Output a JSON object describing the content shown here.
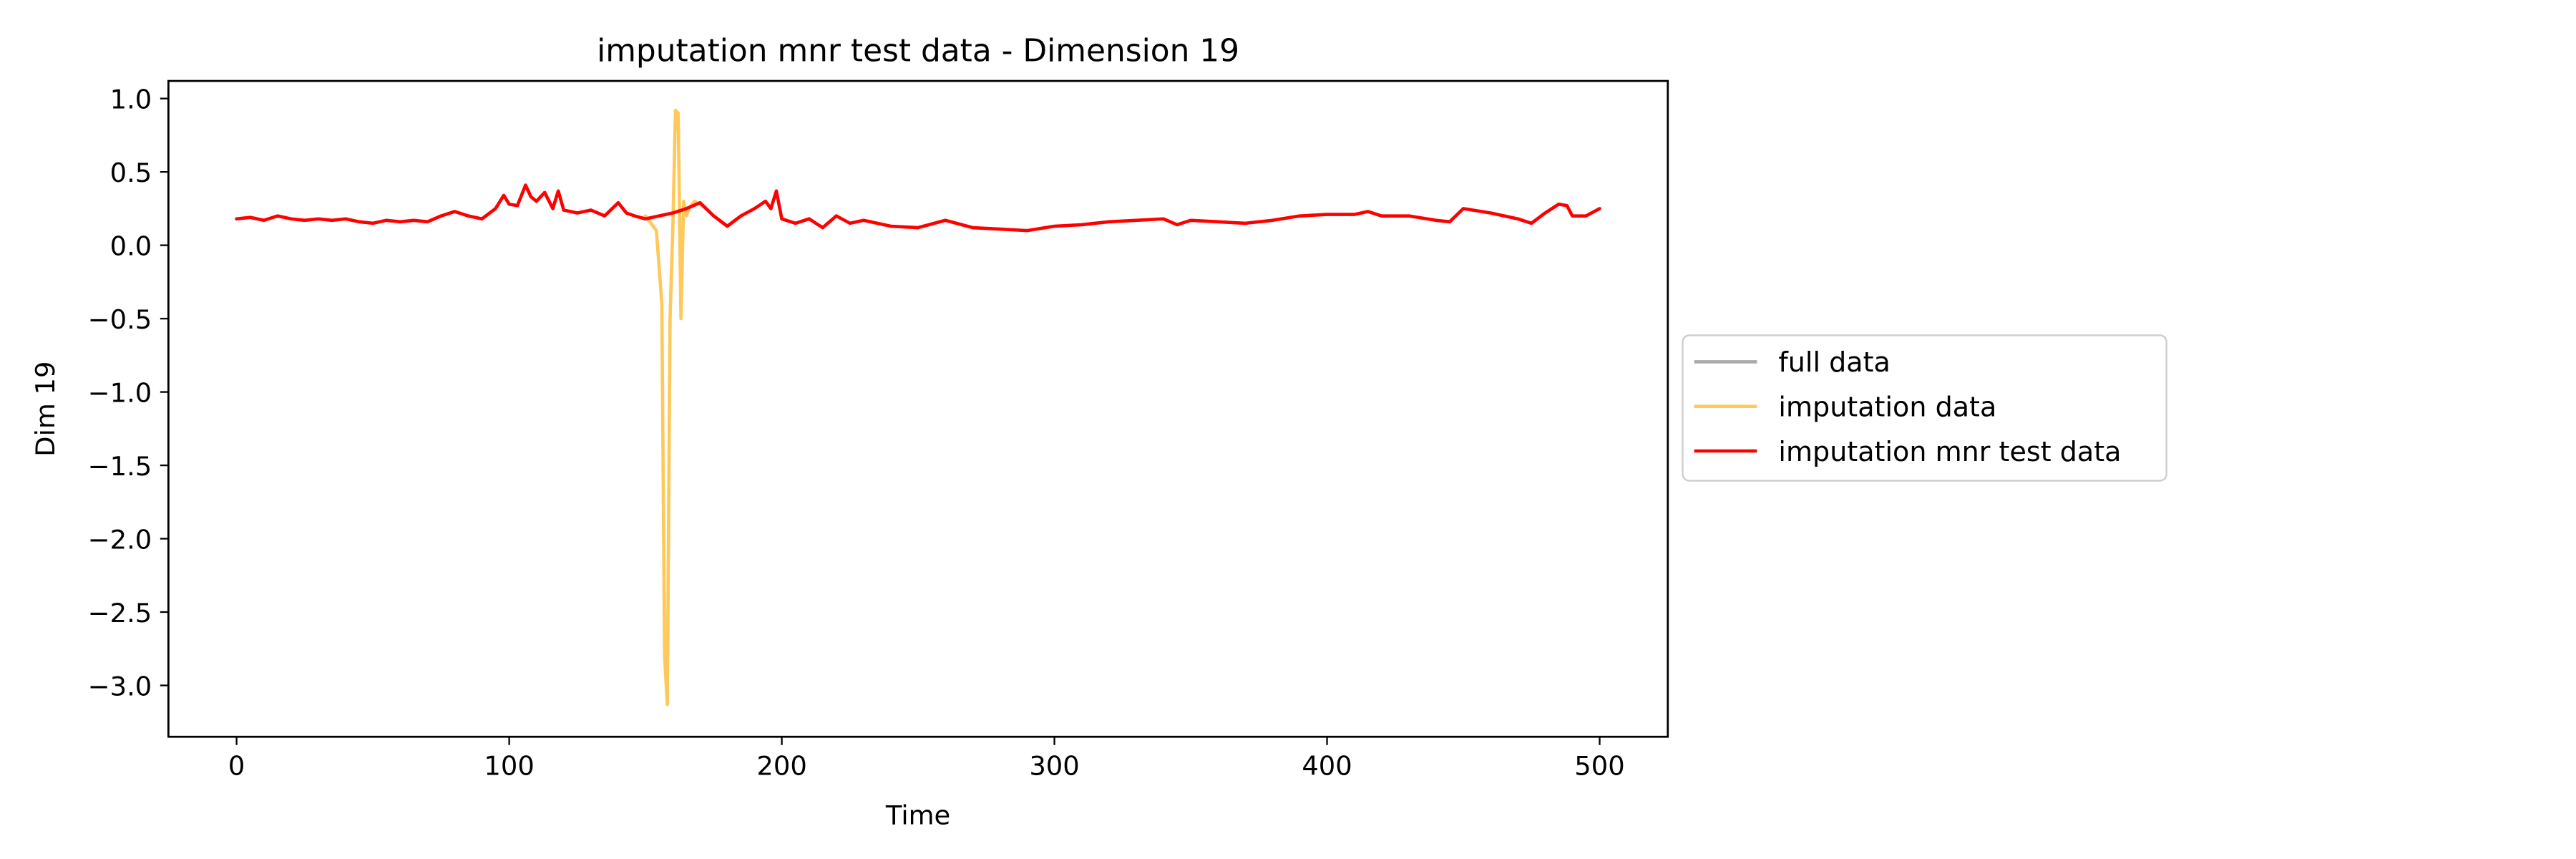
{
  "chart_data": {
    "type": "line",
    "title": "imputation mnr test data - Dimension 19",
    "xlabel": "Time",
    "ylabel": "Dim 19",
    "xlim": [
      -25,
      525
    ],
    "ylim": [
      -3.35,
      1.12
    ],
    "xticks": [
      0,
      100,
      200,
      300,
      400,
      500
    ],
    "xtick_labels": [
      "0",
      "100",
      "200",
      "300",
      "400",
      "500"
    ],
    "yticks": [
      1.0,
      0.5,
      0.0,
      -0.5,
      -1.0,
      -1.5,
      -2.0,
      -2.5,
      -3.0
    ],
    "ytick_labels": [
      "1.0",
      "0.5",
      "0.0",
      "−0.5",
      "−1.0",
      "−1.5",
      "−2.0",
      "−2.5",
      "−3.0"
    ],
    "grid": false,
    "legend_position": "outside-right",
    "series": [
      {
        "name": "full data",
        "color": "#aaaaaa",
        "x": [],
        "y": []
      },
      {
        "name": "imputation data",
        "color": "#ffc85a",
        "x": [
          150,
          154,
          156,
          157,
          158,
          159,
          160,
          161,
          162,
          163,
          164,
          165,
          166,
          168,
          170,
          172
        ],
        "y": [
          0.2,
          0.1,
          -0.4,
          -2.8,
          -3.13,
          -0.5,
          0.1,
          0.92,
          0.9,
          -0.5,
          0.3,
          0.2,
          0.25,
          0.3,
          0.28,
          0.25
        ]
      },
      {
        "name": "imputation mnr test data",
        "color": "#ff0000",
        "x": [
          0,
          5,
          10,
          15,
          20,
          25,
          30,
          35,
          40,
          45,
          50,
          55,
          60,
          65,
          70,
          75,
          80,
          85,
          90,
          95,
          98,
          100,
          103,
          106,
          108,
          110,
          113,
          116,
          118,
          120,
          125,
          130,
          135,
          140,
          143,
          146,
          150,
          155,
          160,
          165,
          170,
          175,
          180,
          185,
          190,
          194,
          196,
          198,
          200,
          205,
          210,
          215,
          220,
          225,
          230,
          240,
          250,
          260,
          270,
          280,
          290,
          300,
          310,
          320,
          330,
          340,
          345,
          350,
          360,
          370,
          380,
          390,
          400,
          410,
          415,
          420,
          430,
          440,
          445,
          450,
          460,
          470,
          475,
          480,
          485,
          488,
          490,
          495,
          500
        ],
        "y": [
          0.18,
          0.19,
          0.17,
          0.2,
          0.18,
          0.17,
          0.18,
          0.17,
          0.18,
          0.16,
          0.15,
          0.17,
          0.16,
          0.17,
          0.16,
          0.2,
          0.23,
          0.2,
          0.18,
          0.25,
          0.34,
          0.28,
          0.27,
          0.41,
          0.33,
          0.3,
          0.36,
          0.25,
          0.37,
          0.24,
          0.22,
          0.24,
          0.2,
          0.29,
          0.22,
          0.2,
          0.18,
          0.2,
          0.22,
          0.25,
          0.29,
          0.2,
          0.13,
          0.2,
          0.25,
          0.3,
          0.25,
          0.37,
          0.18,
          0.15,
          0.18,
          0.12,
          0.2,
          0.15,
          0.17,
          0.13,
          0.12,
          0.17,
          0.12,
          0.11,
          0.1,
          0.13,
          0.14,
          0.16,
          0.17,
          0.18,
          0.14,
          0.17,
          0.16,
          0.15,
          0.17,
          0.2,
          0.21,
          0.21,
          0.23,
          0.2,
          0.2,
          0.17,
          0.16,
          0.25,
          0.22,
          0.18,
          0.15,
          0.22,
          0.28,
          0.27,
          0.2,
          0.2,
          0.25
        ]
      }
    ]
  }
}
